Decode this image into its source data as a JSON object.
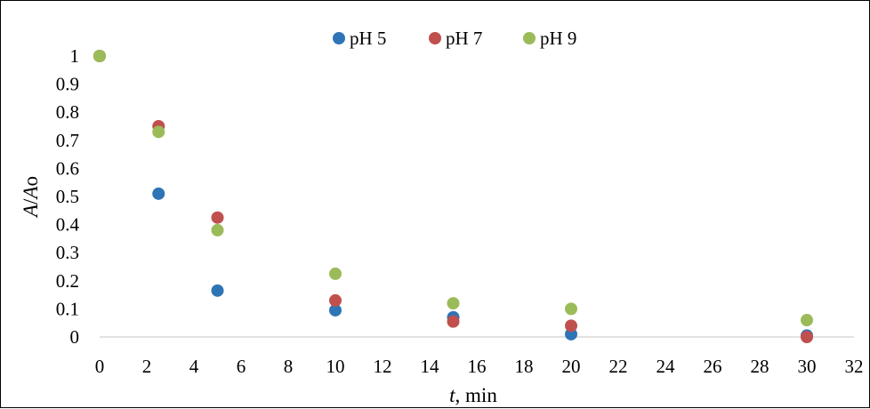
{
  "chart_data": {
    "type": "scatter",
    "xlabel": {
      "italic": "t",
      "rest": ", min"
    },
    "ylabel": {
      "italic": "A",
      "rest": "/",
      "italic2": "A",
      "sub": "o"
    },
    "xlim": [
      0,
      32
    ],
    "ylim": [
      0,
      1
    ],
    "xticks": [
      0,
      2,
      4,
      6,
      8,
      10,
      12,
      14,
      16,
      18,
      20,
      22,
      24,
      26,
      28,
      30,
      32
    ],
    "yticks": [
      0,
      0.1,
      0.2,
      0.3,
      0.4,
      0.5,
      0.6,
      0.7,
      0.8,
      0.9,
      1
    ],
    "grid": false,
    "legend_position": "top-center",
    "series": [
      {
        "name": "pH 5",
        "color": "#2E75B6",
        "x": [
          0,
          2.5,
          5,
          10,
          15,
          20,
          30
        ],
        "y": [
          1.0,
          0.51,
          0.165,
          0.095,
          0.07,
          0.01,
          0.005
        ]
      },
      {
        "name": "pH 7",
        "color": "#C0504D",
        "x": [
          0,
          2.5,
          5,
          10,
          15,
          20,
          30
        ],
        "y": [
          1.0,
          0.75,
          0.425,
          0.13,
          0.055,
          0.04,
          0.0
        ]
      },
      {
        "name": "pH 9",
        "color": "#9BBB59",
        "x": [
          0,
          2.5,
          5,
          10,
          15,
          20,
          30
        ],
        "y": [
          1.0,
          0.73,
          0.38,
          0.225,
          0.12,
          0.1,
          0.06
        ]
      }
    ]
  }
}
